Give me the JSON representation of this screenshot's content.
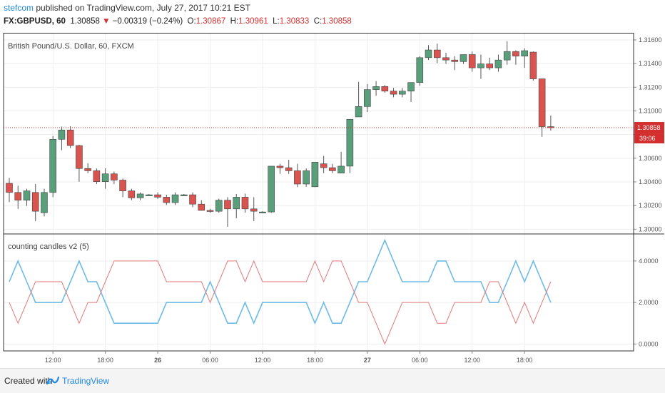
{
  "header": {
    "author": "stefcom",
    "published": "published on TradingView.com, July 27, 2017 10:21 EST",
    "symbol": "FX:GBPUSD, 60",
    "last": "1.30858",
    "arrow": "▼",
    "change": "−0.00319 (−0.24%)",
    "o_label": "O:",
    "o": "1.30867",
    "h_label": "H:",
    "h": "1.30961",
    "l_label": "L:",
    "l": "1.30833",
    "c_label": "C:",
    "c": "1.30858"
  },
  "footer": {
    "created": "Created with",
    "brand": "TradingView",
    "icon": "tradingview-logo-icon"
  },
  "chart_data": [
    {
      "type": "candlestick",
      "title": "British Pound/U.S. Dollar, 60, FXCM",
      "ylim": [
        1.2996,
        1.3166
      ],
      "yticks": [
        "1.30000",
        "1.30200",
        "1.30400",
        "1.30600",
        "1.30800",
        "1.31000",
        "1.31200",
        "1.31400",
        "1.31600"
      ],
      "price_line": {
        "value": 1.30858,
        "label": "1.30858",
        "countdown": "39:06"
      },
      "colors": {
        "up": "#5a9f7c",
        "down": "#d9534f",
        "price_line": "#d32f2f"
      },
      "candles": [
        {
          "o": 1.30388,
          "h": 1.30434,
          "l": 1.30229,
          "c": 1.30311
        },
        {
          "o": 1.30311,
          "h": 1.30368,
          "l": 1.30172,
          "c": 1.30245
        },
        {
          "o": 1.30245,
          "h": 1.30342,
          "l": 1.30197,
          "c": 1.30324
        },
        {
          "o": 1.30311,
          "h": 1.30382,
          "l": 1.30069,
          "c": 1.30152
        },
        {
          "o": 1.30139,
          "h": 1.30342,
          "l": 1.30108,
          "c": 1.30311
        },
        {
          "o": 1.30311,
          "h": 1.30788,
          "l": 1.30271,
          "c": 1.3076
        },
        {
          "o": 1.3076,
          "h": 1.30867,
          "l": 1.30668,
          "c": 1.30839
        },
        {
          "o": 1.30839,
          "h": 1.3087,
          "l": 1.30685,
          "c": 1.30707
        },
        {
          "o": 1.30707,
          "h": 1.30714,
          "l": 1.30402,
          "c": 1.30513
        },
        {
          "o": 1.30513,
          "h": 1.30558,
          "l": 1.30474,
          "c": 1.30494
        },
        {
          "o": 1.30494,
          "h": 1.30513,
          "l": 1.30382,
          "c": 1.30402
        },
        {
          "o": 1.30402,
          "h": 1.30514,
          "l": 1.30342,
          "c": 1.30468
        },
        {
          "o": 1.30468,
          "h": 1.30488,
          "l": 1.30382,
          "c": 1.30415
        },
        {
          "o": 1.30415,
          "h": 1.30428,
          "l": 1.30271,
          "c": 1.30324
        },
        {
          "o": 1.30324,
          "h": 1.30342,
          "l": 1.30245,
          "c": 1.30265
        },
        {
          "o": 1.30265,
          "h": 1.30311,
          "l": 1.30245,
          "c": 1.30298
        },
        {
          "o": 1.30284,
          "h": 1.30298,
          "l": 1.30284,
          "c": 1.30291
        },
        {
          "o": 1.30291,
          "h": 1.30311,
          "l": 1.30256,
          "c": 1.30271
        },
        {
          "o": 1.30271,
          "h": 1.30291,
          "l": 1.30205,
          "c": 1.30225
        },
        {
          "o": 1.30225,
          "h": 1.30311,
          "l": 1.30205,
          "c": 1.30291
        },
        {
          "o": 1.30285,
          "h": 1.30298,
          "l": 1.30284,
          "c": 1.30291
        },
        {
          "o": 1.30291,
          "h": 1.30311,
          "l": 1.30186,
          "c": 1.30212
        },
        {
          "o": 1.30212,
          "h": 1.30245,
          "l": 1.30159,
          "c": 1.30159
        },
        {
          "o": 1.30159,
          "h": 1.30172,
          "l": 1.30139,
          "c": 1.30152
        },
        {
          "o": 1.30152,
          "h": 1.30258,
          "l": 1.30139,
          "c": 1.30245
        },
        {
          "o": 1.30245,
          "h": 1.30271,
          "l": 1.3002,
          "c": 1.30172
        },
        {
          "o": 1.30172,
          "h": 1.30298,
          "l": 1.30092,
          "c": 1.30271
        },
        {
          "o": 1.30271,
          "h": 1.30301,
          "l": 1.30139,
          "c": 1.30172
        },
        {
          "o": 1.30172,
          "h": 1.30271,
          "l": 1.30069,
          "c": 1.30152
        },
        {
          "o": 1.30146,
          "h": 1.30152,
          "l": 1.30139,
          "c": 1.30146
        },
        {
          "o": 1.30146,
          "h": 1.30533,
          "l": 1.30139,
          "c": 1.30533
        },
        {
          "o": 1.30533,
          "h": 1.30553,
          "l": 1.30468,
          "c": 1.3052
        },
        {
          "o": 1.3052,
          "h": 1.30587,
          "l": 1.30468,
          "c": 1.30494
        },
        {
          "o": 1.30494,
          "h": 1.30553,
          "l": 1.30356,
          "c": 1.30382
        },
        {
          "o": 1.30382,
          "h": 1.30514,
          "l": 1.30359,
          "c": 1.30494
        },
        {
          "o": 1.30359,
          "h": 1.30567,
          "l": 1.30356,
          "c": 1.30567
        },
        {
          "o": 1.30553,
          "h": 1.3062,
          "l": 1.30474,
          "c": 1.3052
        },
        {
          "o": 1.3052,
          "h": 1.30553,
          "l": 1.30474,
          "c": 1.30494
        },
        {
          "o": 1.30474,
          "h": 1.30654,
          "l": 1.30474,
          "c": 1.30533
        },
        {
          "o": 1.30533,
          "h": 1.30929,
          "l": 1.30474,
          "c": 1.30929
        },
        {
          "o": 1.30949,
          "h": 1.31246,
          "l": 1.30949,
          "c": 1.31037
        },
        {
          "o": 1.31037,
          "h": 1.31227,
          "l": 1.30991,
          "c": 1.3118
        },
        {
          "o": 1.3118,
          "h": 1.31252,
          "l": 1.31128,
          "c": 1.31206
        },
        {
          "o": 1.31206,
          "h": 1.31219,
          "l": 1.31154,
          "c": 1.31167
        },
        {
          "o": 1.31167,
          "h": 1.31194,
          "l": 1.31115,
          "c": 1.31141
        },
        {
          "o": 1.31141,
          "h": 1.31194,
          "l": 1.31115,
          "c": 1.31167
        },
        {
          "o": 1.31167,
          "h": 1.31233,
          "l": 1.31075,
          "c": 1.3124
        },
        {
          "o": 1.3124,
          "h": 1.31463,
          "l": 1.31213,
          "c": 1.3145
        },
        {
          "o": 1.3145,
          "h": 1.31556,
          "l": 1.3143,
          "c": 1.31515
        },
        {
          "o": 1.31515,
          "h": 1.31568,
          "l": 1.31403,
          "c": 1.3145
        },
        {
          "o": 1.3145,
          "h": 1.31492,
          "l": 1.31397,
          "c": 1.3143
        },
        {
          "o": 1.3143,
          "h": 1.31463,
          "l": 1.31345,
          "c": 1.31417
        },
        {
          "o": 1.31417,
          "h": 1.31476,
          "l": 1.31397,
          "c": 1.31476
        },
        {
          "o": 1.31476,
          "h": 1.31502,
          "l": 1.31331,
          "c": 1.31364
        },
        {
          "o": 1.31364,
          "h": 1.31476,
          "l": 1.31271,
          "c": 1.31397
        },
        {
          "o": 1.31397,
          "h": 1.3145,
          "l": 1.31345,
          "c": 1.31364
        },
        {
          "o": 1.31364,
          "h": 1.31476,
          "l": 1.31331,
          "c": 1.3143
        },
        {
          "o": 1.3143,
          "h": 1.31588,
          "l": 1.3139,
          "c": 1.31502
        },
        {
          "o": 1.31502,
          "h": 1.31513,
          "l": 1.3139,
          "c": 1.31463
        },
        {
          "o": 1.31463,
          "h": 1.31529,
          "l": 1.31364,
          "c": 1.31509
        },
        {
          "o": 1.31497,
          "h": 1.31502,
          "l": 1.31257,
          "c": 1.31271
        },
        {
          "o": 1.31271,
          "h": 1.31271,
          "l": 1.30781,
          "c": 1.30867
        },
        {
          "o": 1.30867,
          "h": 1.30961,
          "l": 1.30833,
          "c": 1.30858
        }
      ]
    },
    {
      "type": "line",
      "title": "counting candles v2 (5)",
      "ylim": [
        -0.3,
        5.2
      ],
      "yticks": [
        "0.0000",
        "2.0000",
        "4.0000"
      ],
      "x_start": "2017-07-25 07:00",
      "x_step_hours": 1,
      "xticks": [
        {
          "label": "12:00",
          "index": 5,
          "bold": false
        },
        {
          "label": "18:00",
          "index": 11,
          "bold": false
        },
        {
          "label": "26",
          "index": 17,
          "bold": true
        },
        {
          "label": "06:00",
          "index": 23,
          "bold": false
        },
        {
          "label": "12:00",
          "index": 29,
          "bold": false
        },
        {
          "label": "18:00",
          "index": 35,
          "bold": false
        },
        {
          "label": "27",
          "index": 41,
          "bold": true
        },
        {
          "label": "06:00",
          "index": 47,
          "bold": false
        },
        {
          "label": "12:00",
          "index": 53,
          "bold": false
        },
        {
          "label": "18:00",
          "index": 59,
          "bold": false
        }
      ],
      "series": [
        {
          "color": "#6dbbe6",
          "values": [
            3,
            4,
            3,
            2,
            2,
            2,
            2,
            3,
            4,
            3,
            3,
            2,
            1,
            1,
            1,
            1,
            1,
            1,
            2,
            2,
            2,
            2,
            2,
            3,
            2,
            1,
            1,
            2,
            1,
            2,
            2,
            2,
            2,
            2,
            2,
            1,
            2,
            1,
            1,
            2,
            3,
            3,
            4,
            5,
            4,
            3,
            3,
            3,
            3,
            4,
            4,
            3,
            3,
            3,
            3,
            2,
            2,
            3,
            4,
            3,
            4,
            3,
            2
          ]
        },
        {
          "color": "#e07a7a",
          "values": [
            2,
            1,
            2,
            3,
            3,
            3,
            3,
            2,
            1,
            2,
            2,
            3,
            4,
            4,
            4,
            4,
            4,
            4,
            3,
            3,
            3,
            3,
            3,
            2,
            3,
            4,
            4,
            3,
            4,
            3,
            3,
            3,
            3,
            3,
            3,
            4,
            3,
            4,
            4,
            3,
            2,
            2,
            1,
            0,
            1,
            2,
            2,
            2,
            2,
            1,
            1,
            2,
            2,
            2,
            2,
            3,
            3,
            2,
            1,
            2,
            1,
            2,
            3
          ]
        }
      ]
    }
  ]
}
